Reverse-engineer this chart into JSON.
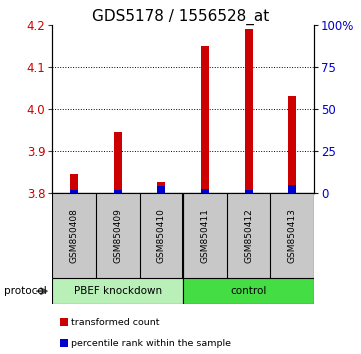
{
  "title": "GDS5178 / 1556528_at",
  "samples": [
    "GSM850408",
    "GSM850409",
    "GSM850410",
    "GSM850411",
    "GSM850412",
    "GSM850413"
  ],
  "red_values": [
    3.845,
    3.945,
    3.825,
    4.15,
    4.19,
    4.03
  ],
  "blue_values": [
    1.5,
    1.5,
    4.0,
    2.5,
    2.0,
    4.5
  ],
  "ylim_left": [
    3.8,
    4.2
  ],
  "ylim_right": [
    0,
    100
  ],
  "left_ticks": [
    3.8,
    3.9,
    4.0,
    4.1,
    4.2
  ],
  "right_ticks": [
    0,
    25,
    50,
    75,
    100
  ],
  "right_tick_labels": [
    "0",
    "25",
    "50",
    "75",
    "100%"
  ],
  "grid_lines": [
    3.9,
    4.0,
    4.1
  ],
  "protocol_label": "protocol",
  "red_color": "#cc0000",
  "blue_color": "#0000cc",
  "label_bg": "#c8c8c8",
  "group1_color": "#b8f0b8",
  "group2_color": "#44dd44",
  "title_fontsize": 11,
  "tick_fontsize": 8.5,
  "bar_width": 0.18
}
